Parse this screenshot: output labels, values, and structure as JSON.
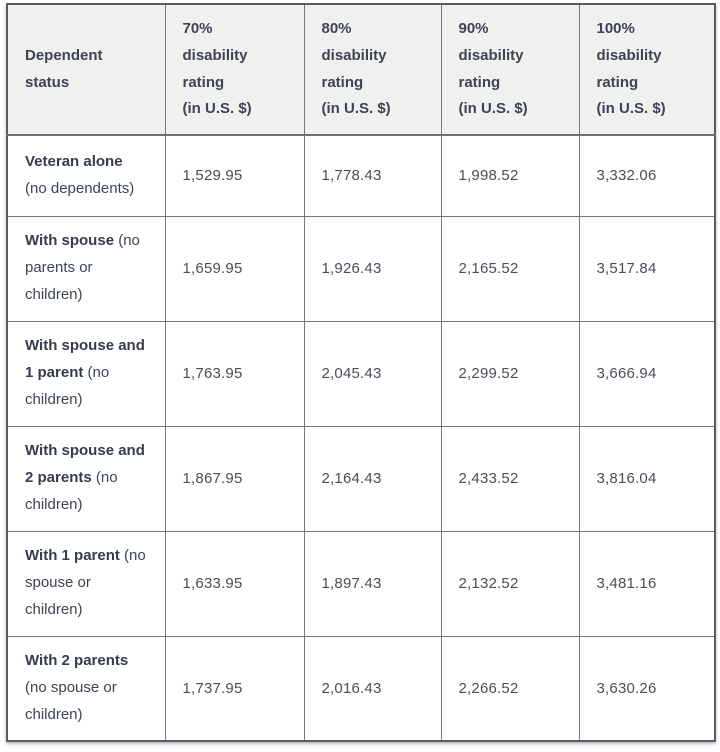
{
  "colors": {
    "header_background": "#f0f0ef",
    "border_inner": "#75797e",
    "border_outer": "#565c65",
    "text": "#3d4551"
  },
  "table": {
    "headers": [
      "Dependent\nstatus",
      "70%\ndisability\nrating\n(in U.S. $)",
      "80%\ndisability\nrating\n(in U.S. $)",
      "90%\ndisability\nrating\n(in U.S. $)",
      "100%\ndisability\nrating\n(in U.S. $)"
    ],
    "rows": [
      {
        "status_lines": [
          {
            "b": "Veteran alone",
            "r": ""
          },
          {
            "b": "",
            "r": "(no dependents)"
          }
        ],
        "values": [
          "1,529.95",
          "1,778.43",
          "1,998.52",
          "3,332.06"
        ]
      },
      {
        "status_lines": [
          {
            "b": "With spouse",
            "r": " (no"
          },
          {
            "b": "",
            "r": "parents or"
          },
          {
            "b": "",
            "r": "children)"
          }
        ],
        "values": [
          "1,659.95",
          "1,926.43",
          "2,165.52",
          "3,517.84"
        ]
      },
      {
        "status_lines": [
          {
            "b": "With spouse and",
            "r": ""
          },
          {
            "b": "1 parent",
            "r": " (no"
          },
          {
            "b": "",
            "r": "children)"
          }
        ],
        "values": [
          "1,763.95",
          "2,045.43",
          "2,299.52",
          "3,666.94"
        ]
      },
      {
        "status_lines": [
          {
            "b": "With spouse and",
            "r": ""
          },
          {
            "b": "2 parents",
            "r": " (no"
          },
          {
            "b": "",
            "r": "children)"
          }
        ],
        "values": [
          "1,867.95",
          "2,164.43",
          "2,433.52",
          "3,816.04"
        ]
      },
      {
        "status_lines": [
          {
            "b": "With 1 parent",
            "r": " (no"
          },
          {
            "b": "",
            "r": "spouse or"
          },
          {
            "b": "",
            "r": "children)"
          }
        ],
        "values": [
          "1,633.95",
          "1,897.43",
          "2,132.52",
          "3,481.16"
        ]
      },
      {
        "status_lines": [
          {
            "b": "With 2 parents",
            "r": ""
          },
          {
            "b": "",
            "r": "(no spouse or"
          },
          {
            "b": "",
            "r": "children)"
          }
        ],
        "values": [
          "1,737.95",
          "2,016.43",
          "2,266.52",
          "3,630.26"
        ]
      }
    ]
  }
}
